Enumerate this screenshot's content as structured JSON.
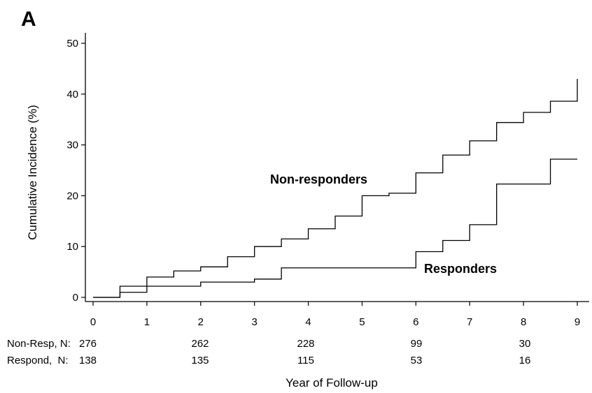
{
  "panel_label": "A",
  "chart_data": {
    "type": "line",
    "step": true,
    "xlabel": "Year of Follow-up",
    "ylabel": "Cumulative Incidence (%)",
    "xlim": [
      0,
      9
    ],
    "ylim": [
      0,
      50
    ],
    "x_ticks": [
      0,
      1,
      2,
      3,
      4,
      5,
      6,
      7,
      8,
      9
    ],
    "y_ticks": [
      0,
      10,
      20,
      30,
      40,
      50
    ],
    "grid": false,
    "series": [
      {
        "name": "Non-responders",
        "points": [
          [
            0,
            0
          ],
          [
            0.5,
            2.2
          ],
          [
            1.0,
            4.0
          ],
          [
            1.5,
            5.2
          ],
          [
            2.0,
            6.0
          ],
          [
            2.5,
            8.0
          ],
          [
            3.0,
            10.0
          ],
          [
            3.5,
            11.5
          ],
          [
            4.0,
            13.5
          ],
          [
            4.5,
            16.0
          ],
          [
            5.0,
            20.0
          ],
          [
            5.5,
            20.5
          ],
          [
            6.0,
            24.5
          ],
          [
            6.5,
            28.0
          ],
          [
            7.0,
            30.8
          ],
          [
            7.5,
            34.4
          ],
          [
            8.0,
            36.4
          ],
          [
            8.5,
            38.6
          ],
          [
            9.0,
            43.0
          ]
        ]
      },
      {
        "name": "Responders",
        "points": [
          [
            0,
            0
          ],
          [
            0.5,
            1.0
          ],
          [
            1.0,
            2.2
          ],
          [
            2.0,
            3.0
          ],
          [
            3.0,
            3.6
          ],
          [
            3.5,
            5.8
          ],
          [
            6.0,
            9.0
          ],
          [
            6.5,
            11.2
          ],
          [
            7.0,
            14.3
          ],
          [
            7.5,
            22.3
          ],
          [
            8.5,
            27.2
          ]
        ],
        "x_end": 9.0
      }
    ],
    "risk_table": {
      "rows": [
        {
          "label": "Non-Resp, N:",
          "values": [
            "276",
            "262",
            "228",
            "99",
            "30"
          ]
        },
        {
          "label": "Respond,  N:",
          "values": [
            "138",
            "135",
            "115",
            "53",
            "16"
          ]
        }
      ],
      "times": [
        0,
        2,
        4,
        6,
        8
      ]
    }
  }
}
